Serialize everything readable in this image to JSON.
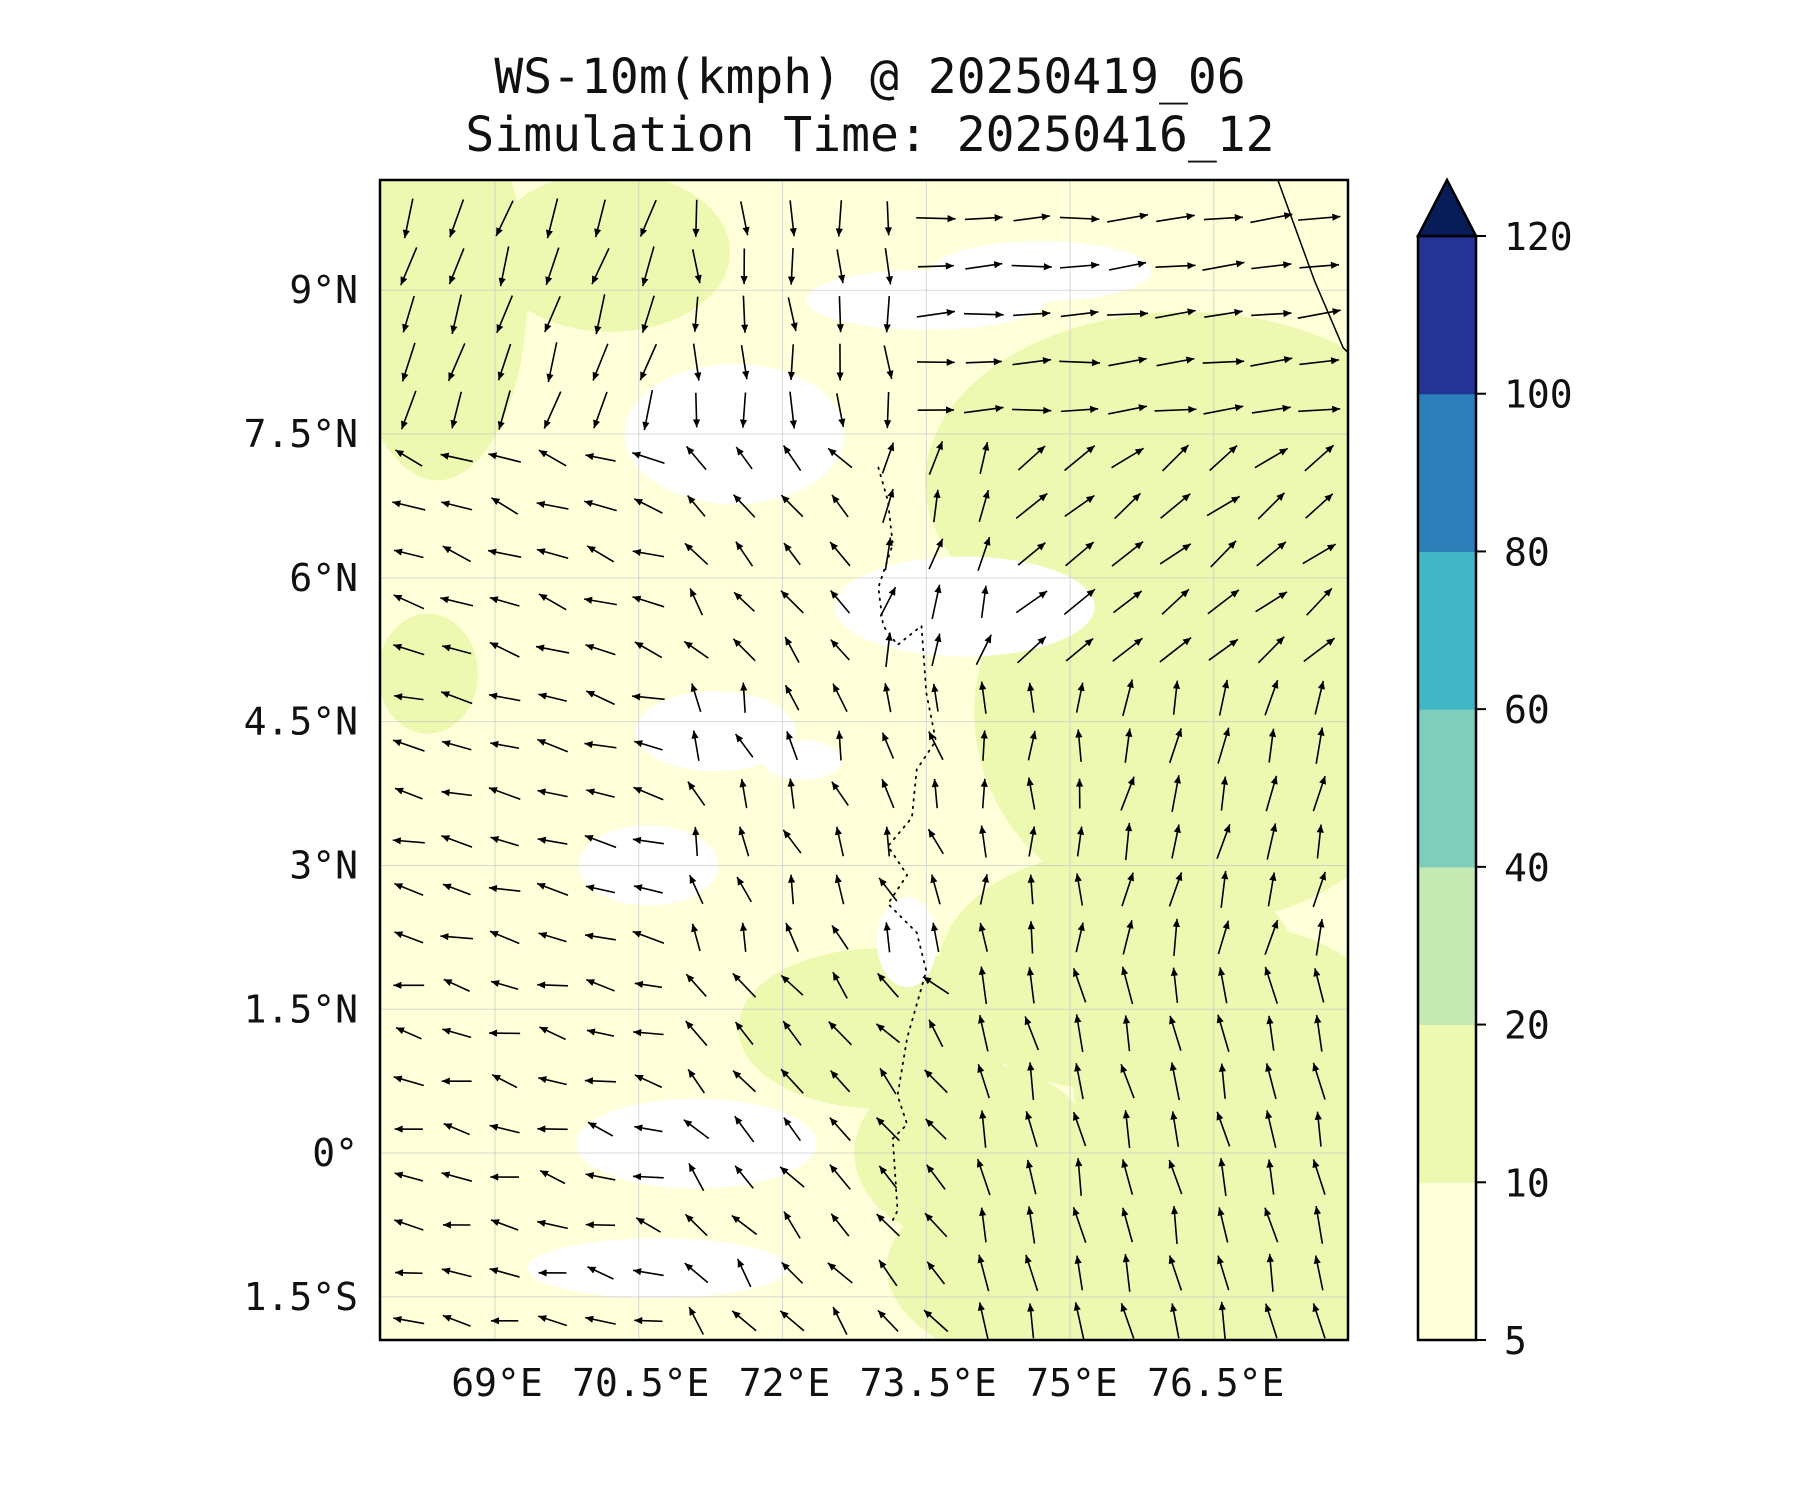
{
  "map": {
    "title": "WS-10m(kmph) @ 20250419_06",
    "subtitle": "Simulation Time: 20250416_12",
    "variable": "WS-10m",
    "units": "kmph",
    "lon_range": [
      67.8,
      77.9
    ],
    "lat_range": [
      -1.95,
      10.15
    ],
    "lat_ticks": [
      {
        "value": 9,
        "label": "9°N"
      },
      {
        "value": 7.5,
        "label": "7.5°N"
      },
      {
        "value": 6,
        "label": "6°N"
      },
      {
        "value": 4.5,
        "label": "4.5°N"
      },
      {
        "value": 3,
        "label": "3°N"
      },
      {
        "value": 1.5,
        "label": "1.5°N"
      },
      {
        "value": 0,
        "label": "0°"
      },
      {
        "value": -1.5,
        "label": "1.5°S"
      }
    ],
    "lon_ticks": [
      {
        "value": 69,
        "label": "69°E"
      },
      {
        "value": 70.5,
        "label": "70.5°E"
      },
      {
        "value": 72,
        "label": "72°E"
      },
      {
        "value": 73.5,
        "label": "73.5°E"
      },
      {
        "value": 75,
        "label": "75°E"
      },
      {
        "value": 76.5,
        "label": "76.5°E"
      }
    ],
    "gridlines": true,
    "features": [
      "sri-lanka-coastline",
      "maldives-atolls"
    ]
  },
  "colorbar": {
    "extend": "max",
    "levels": [
      {
        "value": 5,
        "label": "5"
      },
      {
        "value": 10,
        "label": "10"
      },
      {
        "value": 20,
        "label": "20"
      },
      {
        "value": 40,
        "label": "40"
      },
      {
        "value": 60,
        "label": "60"
      },
      {
        "value": 80,
        "label": "80"
      },
      {
        "value": 100,
        "label": "100"
      },
      {
        "value": 120,
        "label": "120"
      }
    ],
    "colors": [
      "#ffffd9",
      "#edf8b1",
      "#c7e9b4",
      "#7fcdbb",
      "#41b6c4",
      "#2c7fb8",
      "#253494",
      "#081d58"
    ]
  },
  "colors": {
    "background": "#ffffd9",
    "band_10_20": "#edf8b1",
    "calm_below_5": "#ffffff",
    "coastline": "#000000",
    "arrows": "#000000"
  }
}
